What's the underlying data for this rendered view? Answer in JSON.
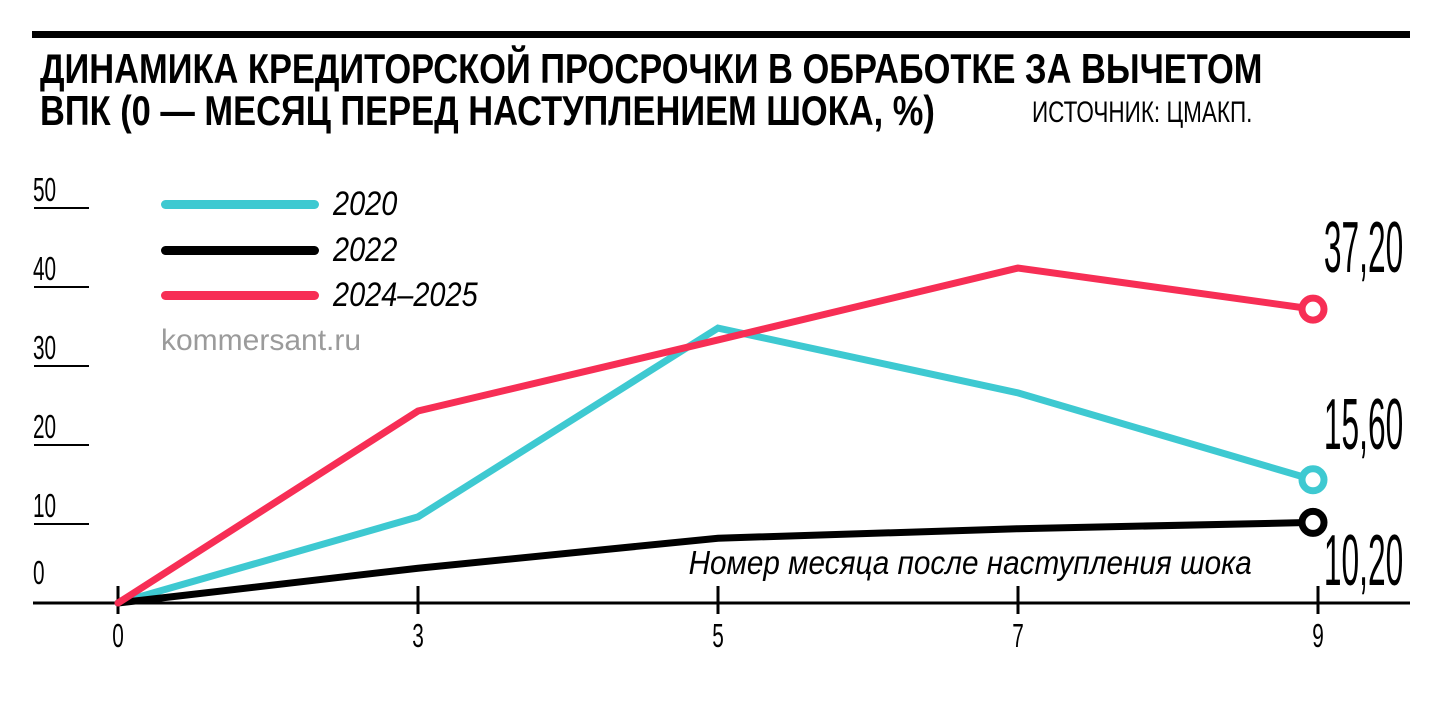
{
  "header": {
    "title_line1": "ДИНАМИКА КРЕДИТОРСКОЙ ПРОСРОЧКИ В ОБРАБОТКЕ ЗА ВЫЧЕТОМ",
    "title_line2": "ВПК (0 — МЕСЯЦ ПЕРЕД НАСТУПЛЕНИЕМ ШОКА, %)",
    "source": "ИСТОЧНИК: ЦМАКП."
  },
  "watermark": "kommersant.ru",
  "chart_data": {
    "type": "line",
    "x": [
      0,
      3,
      5,
      7,
      9
    ],
    "x_tick_labels": [
      "0",
      "3",
      "5",
      "7",
      "9"
    ],
    "xlabel": "Номер месяца после наступления шока",
    "ylabel": "",
    "yticks": [
      0,
      10,
      20,
      30,
      40,
      50
    ],
    "ylim": [
      0,
      50
    ],
    "grid": false,
    "legend_position": "top-left",
    "series": [
      {
        "name": "2020",
        "color": "#3EC9D1",
        "values": [
          0,
          10.9,
          34.8,
          26.6,
          15.6
        ],
        "end_label": "15,60"
      },
      {
        "name": "2022",
        "color": "#000000",
        "values": [
          0,
          4.4,
          8.2,
          9.4,
          10.2
        ],
        "end_label": "10,20"
      },
      {
        "name": "2024–2025",
        "color": "#F72E55",
        "values": [
          0,
          24.3,
          33.3,
          42.4,
          37.2
        ],
        "end_label": "37,20"
      }
    ]
  }
}
